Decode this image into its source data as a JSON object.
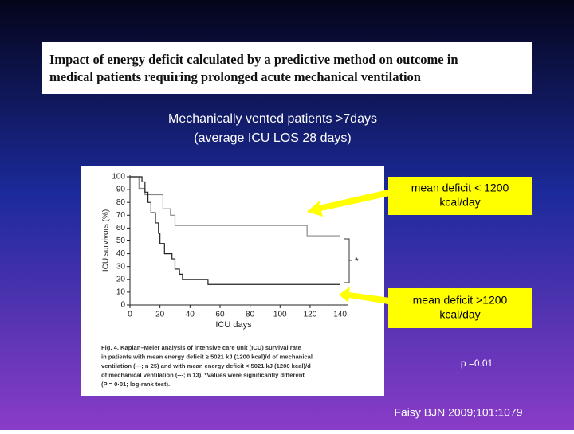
{
  "slide": {
    "heading": [
      "Impact of energy deficit calculated by a predictive method on outcome in",
      "medical patients requiring prolonged acute mechanical ventilation"
    ],
    "subtitle": [
      "Mechanically vented patients >7days",
      "(average ICU LOS 28 days)"
    ],
    "callout_low": [
      "mean deficit < 1200",
      "kcal/day"
    ],
    "callout_high": [
      "mean deficit >1200",
      "kcal/day"
    ],
    "p_value": "p =0.01",
    "citation": "Faisy BJN 2009;101:1079"
  },
  "chart_data": {
    "type": "line",
    "step": true,
    "xlabel": "ICU days",
    "ylabel": "ICU survivors (%)",
    "xlim": [
      0,
      145
    ],
    "ylim": [
      0,
      100
    ],
    "xticks": [
      0,
      20,
      40,
      60,
      80,
      100,
      120,
      140
    ],
    "yticks": [
      0,
      10,
      20,
      30,
      40,
      50,
      60,
      70,
      80,
      90,
      100
    ],
    "annotation": "*",
    "caption": [
      "Fig. 4. Kaplan–Meier analysis of intensive care unit (ICU) survival rate",
      "in patients with mean energy deficit ≥ 5021 kJ (1200 kcal)/d of mechanical",
      "ventilation (—; n 25) and with mean energy deficit < 5021 kJ (1200 kcal)/d",
      "of mechanical ventilation (---; n 13). *Values were significantly different",
      "(P = 0·01; log-rank test)."
    ],
    "series": [
      {
        "name": "mean energy deficit < 5021 kJ/d",
        "color": "#888888",
        "x": [
          0,
          6,
          10,
          22,
          27,
          30,
          118,
          140
        ],
        "values": [
          100,
          91,
          86,
          75,
          70,
          62,
          54,
          54
        ]
      },
      {
        "name": "mean energy deficit ≥ 5021 kJ/d",
        "color": "#222222",
        "x": [
          0,
          8,
          10,
          12,
          14,
          17,
          19,
          20,
          23,
          28,
          30,
          33,
          35,
          37,
          52,
          140
        ],
        "values": [
          100,
          96,
          88,
          80,
          72,
          64,
          56,
          48,
          40,
          36,
          28,
          24,
          20,
          20,
          16,
          16
        ]
      }
    ]
  }
}
